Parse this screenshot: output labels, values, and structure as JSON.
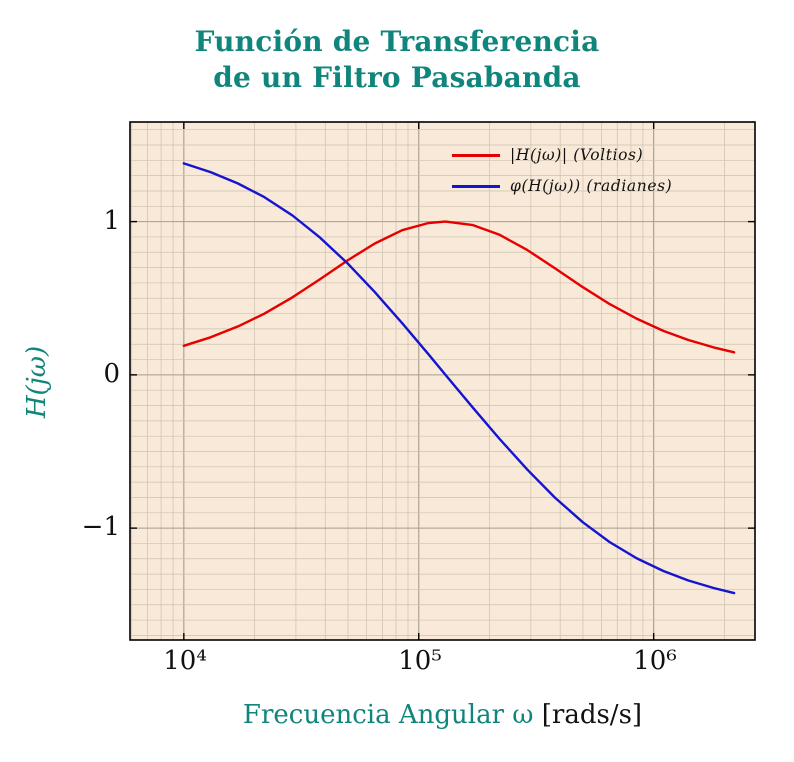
{
  "header": {
    "title_line1": "Función de Transferencia",
    "title_line2": "de un Filtro Pasabanda"
  },
  "labels": {
    "ylabel": "H(jω)",
    "xlabel_main": "Frecuencia Angular ω ",
    "xlabel_units": "[rads/s]"
  },
  "colors": {
    "accent_teal": "#0f857c",
    "text": "#111111",
    "magnitude_red": "#e60000",
    "phase_blue": "#1414d2",
    "plot_background": "#f8e9d8"
  },
  "chart_data": {
    "type": "line",
    "title": "Función de Transferencia de un Filtro Pasabanda",
    "xlabel": "Frecuencia Angular ω [rads/s]",
    "ylabel": "H(jω)",
    "x_scale": "log",
    "xlim": [
      5900,
      2700000
    ],
    "ylim": [
      -1.73,
      1.65
    ],
    "grid": "both-with-minor",
    "legend_position": "top-right-inside",
    "plot_bg": "#f8e9d8",
    "grid_minor": "#cdc1af",
    "grid_major": "#a89d8a",
    "x_ticks": [
      10000,
      100000,
      1000000
    ],
    "x_tick_labels": [
      "10⁴",
      "10⁵",
      "10⁶"
    ],
    "y_ticks": [
      1,
      0,
      -1
    ],
    "y_tick_labels": [
      "1",
      "0",
      "−1"
    ],
    "series": [
      {
        "name": "|H(jω)| (Voltios)",
        "color": "#e60000",
        "x": [
          10000,
          13000,
          17000,
          22000,
          29000,
          38000,
          50000,
          65000,
          85000,
          110000,
          130000,
          170000,
          220000,
          290000,
          380000,
          500000,
          650000,
          850000,
          1100000,
          1400000,
          1800000,
          2200000
        ],
        "y": [
          0.19,
          0.245,
          0.316,
          0.399,
          0.506,
          0.624,
          0.749,
          0.857,
          0.944,
          0.991,
          1.0,
          0.977,
          0.915,
          0.814,
          0.696,
          0.572,
          0.462,
          0.365,
          0.287,
          0.228,
          0.179,
          0.147
        ]
      },
      {
        "name": "φ(H(jω)) (radianes)",
        "color": "#1414d2",
        "x": [
          10000,
          13000,
          17000,
          22000,
          29000,
          38000,
          50000,
          65000,
          85000,
          110000,
          130000,
          170000,
          220000,
          290000,
          380000,
          500000,
          650000,
          850000,
          1100000,
          1400000,
          1800000,
          2200000
        ],
        "y": [
          1.38,
          1.323,
          1.249,
          1.16,
          1.04,
          0.896,
          0.725,
          0.54,
          0.337,
          0.134,
          0.0,
          -0.214,
          -0.415,
          -0.619,
          -0.801,
          -0.962,
          -1.091,
          -1.198,
          -1.28,
          -1.341,
          -1.391,
          -1.424
        ]
      }
    ]
  }
}
